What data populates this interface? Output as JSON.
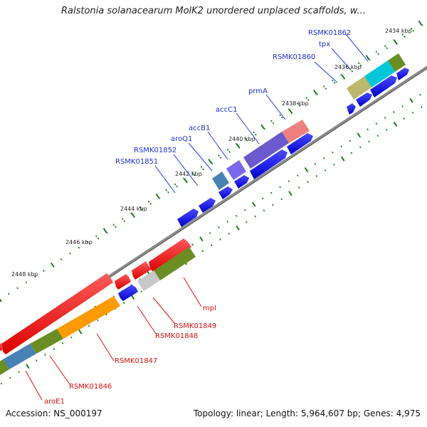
{
  "title": "Ralstonia solanacearum MolK2 unordered unplaced scaffolds, w...",
  "accession": "Accession: NS_000197",
  "summary": "Topology: linear; Length: 5,964,607 bp; Genes: 4,975",
  "colors": {
    "backbone": "#888888",
    "tick": "#1a7a1a",
    "gene_arrow": "#0000ee",
    "label_line_blue": "#1f3fe0",
    "label_line_red": "#e01010",
    "label_text_blue": "#1f2fd0",
    "label_text_red": "#d81010",
    "forward_cds": "#e8e800",
    "red_arrow": "#ff0000"
  },
  "kbp_labels": [
    "2434 kbp",
    "2436 kbp",
    "2438 kbp",
    "2440 kbp",
    "2442 kbp",
    "2444 kbp",
    "2446 kbp",
    "2448 kbp"
  ],
  "upper_genes": [
    {
      "label": "RSMK01862",
      "color": "#2060c0"
    },
    {
      "label": "tpx",
      "color": "#2060c0"
    },
    {
      "label": "RSMK01860",
      "color": "#2060c0"
    },
    {
      "label": "prmA",
      "color": "#2060c0"
    },
    {
      "label": "accC1",
      "color": "#2060c0"
    },
    {
      "label": "accB1",
      "color": "#2060c0"
    },
    {
      "label": "aroQ1",
      "color": "#2060c0"
    },
    {
      "label": "RSMK01852",
      "color": "#2060c0"
    },
    {
      "label": "RSMK01851",
      "color": "#2060c0"
    }
  ],
  "lower_genes": [
    {
      "label": "mpl"
    },
    {
      "label": "RSMK01849"
    },
    {
      "label": "RSMK01848"
    },
    {
      "label": "RSMK01847"
    },
    {
      "label": "RSMK01846"
    },
    {
      "label": "aroE1"
    }
  ]
}
